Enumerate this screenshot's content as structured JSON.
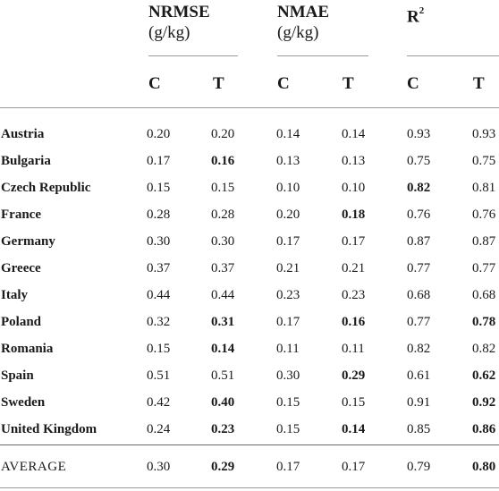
{
  "groups": [
    {
      "name": "NRMSE",
      "unit": "(g/kg)"
    },
    {
      "name": "NMAE",
      "unit": "(g/kg)"
    },
    {
      "name": "R",
      "sup": "2"
    }
  ],
  "subcols": [
    "C",
    "T",
    "C",
    "T",
    "C",
    "T"
  ],
  "rows": [
    {
      "country": "Austria",
      "values": [
        "0.20",
        "0.20",
        "0.14",
        "0.14",
        "0.93",
        "0.93"
      ],
      "bold": [
        false,
        false,
        false,
        false,
        false,
        false
      ]
    },
    {
      "country": "Bulgaria",
      "values": [
        "0.17",
        "0.16",
        "0.13",
        "0.13",
        "0.75",
        "0.75"
      ],
      "bold": [
        false,
        true,
        false,
        false,
        false,
        false
      ]
    },
    {
      "country": "Czech Republic",
      "values": [
        "0.15",
        "0.15",
        "0.10",
        "0.10",
        "0.82",
        "0.81"
      ],
      "bold": [
        false,
        false,
        false,
        false,
        true,
        false
      ]
    },
    {
      "country": "France",
      "values": [
        "0.28",
        "0.28",
        "0.20",
        "0.18",
        "0.76",
        "0.76"
      ],
      "bold": [
        false,
        false,
        false,
        true,
        false,
        false
      ]
    },
    {
      "country": "Germany",
      "values": [
        "0.30",
        "0.30",
        "0.17",
        "0.17",
        "0.87",
        "0.87"
      ],
      "bold": [
        false,
        false,
        false,
        false,
        false,
        false
      ]
    },
    {
      "country": "Greece",
      "values": [
        "0.37",
        "0.37",
        "0.21",
        "0.21",
        "0.77",
        "0.77"
      ],
      "bold": [
        false,
        false,
        false,
        false,
        false,
        false
      ]
    },
    {
      "country": "Italy",
      "values": [
        "0.44",
        "0.44",
        "0.23",
        "0.23",
        "0.68",
        "0.68"
      ],
      "bold": [
        false,
        false,
        false,
        false,
        false,
        false
      ]
    },
    {
      "country": "Poland",
      "values": [
        "0.32",
        "0.31",
        "0.17",
        "0.16",
        "0.77",
        "0.78"
      ],
      "bold": [
        false,
        true,
        false,
        true,
        false,
        true
      ]
    },
    {
      "country": "Romania",
      "values": [
        "0.15",
        "0.14",
        "0.11",
        "0.11",
        "0.82",
        "0.82"
      ],
      "bold": [
        false,
        true,
        false,
        false,
        false,
        false
      ]
    },
    {
      "country": "Spain",
      "values": [
        "0.51",
        "0.51",
        "0.30",
        "0.29",
        "0.61",
        "0.62"
      ],
      "bold": [
        false,
        false,
        false,
        true,
        false,
        true
      ]
    },
    {
      "country": "Sweden",
      "values": [
        "0.42",
        "0.40",
        "0.15",
        "0.15",
        "0.91",
        "0.92"
      ],
      "bold": [
        false,
        true,
        false,
        false,
        false,
        true
      ]
    },
    {
      "country": "United Kingdom",
      "values": [
        "0.24",
        "0.23",
        "0.15",
        "0.14",
        "0.85",
        "0.86"
      ],
      "bold": [
        false,
        true,
        false,
        true,
        false,
        true
      ]
    }
  ],
  "average": {
    "label": "AVERAGE",
    "values": [
      "0.30",
      "0.29",
      "0.17",
      "0.17",
      "0.79",
      "0.80"
    ],
    "bold": [
      false,
      true,
      false,
      false,
      false,
      true
    ]
  }
}
